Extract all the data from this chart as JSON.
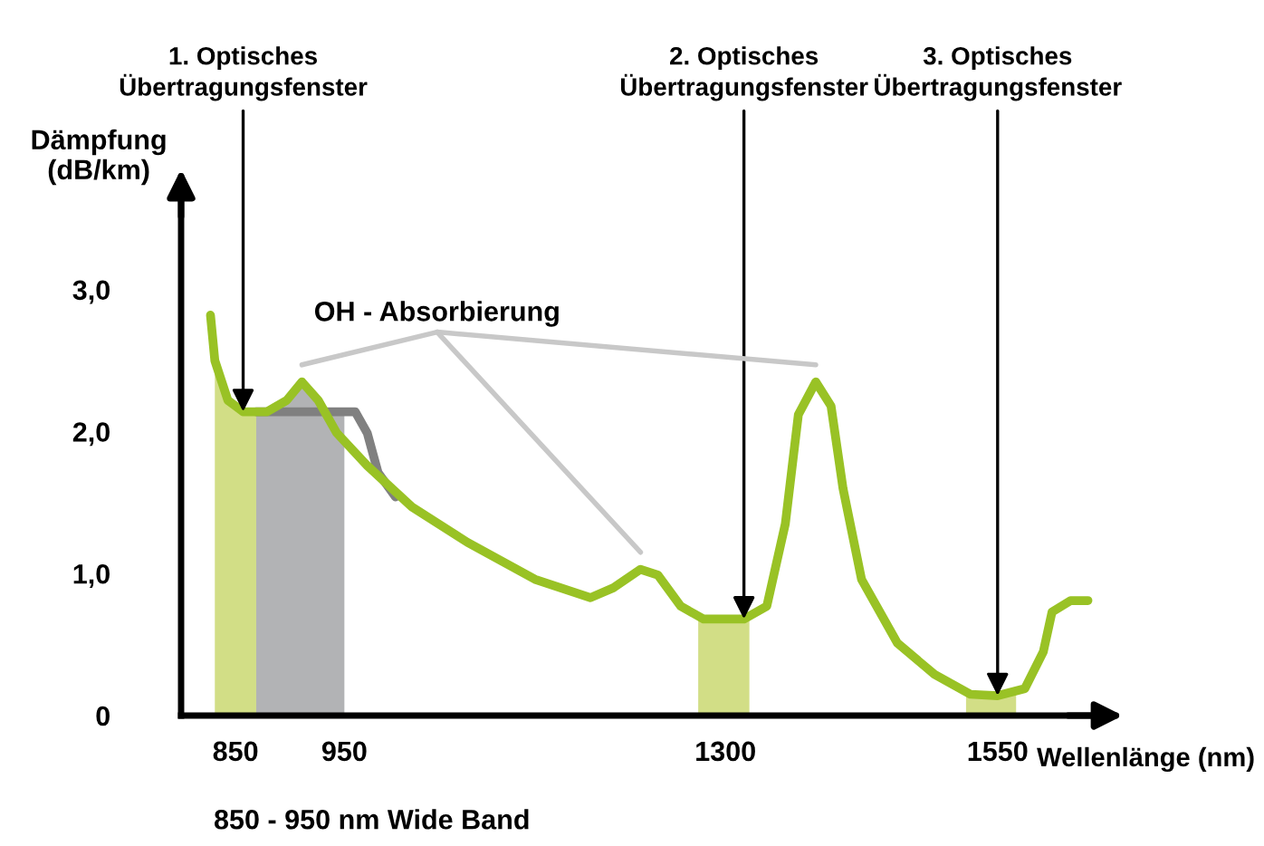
{
  "chart_data": {
    "type": "line",
    "xlabel": "Wellenlänge (nm)",
    "ylabel": "Dämpfung\n(dB/km)",
    "xlim": [
      800,
      1640
    ],
    "ylim": [
      0,
      3.7
    ],
    "xticks": [
      850,
      950,
      1300,
      1550
    ],
    "yticks": [
      0,
      {
        "value": 1,
        "label": "1,0"
      },
      {
        "value": 2,
        "label": "2,0"
      },
      {
        "value": 3,
        "label": "3,0"
      }
    ],
    "grid": false,
    "marker": "none",
    "line_style": "solid",
    "series": [
      {
        "color": "#99c225",
        "x": [
          827,
          831,
          843,
          857,
          879,
          897,
          911,
          926,
          943,
          971,
          1012,
          1063,
          1125,
          1176,
          1197,
          1222,
          1238,
          1259,
          1280,
          1317,
          1338,
          1355,
          1367,
          1383,
          1397,
          1408,
          1425,
          1458,
          1492,
          1525,
          1550,
          1575,
          1592,
          1600,
          1617,
          1633
        ],
        "values": [
          2.82,
          2.5,
          2.22,
          2.14,
          2.14,
          2.22,
          2.35,
          2.22,
          1.99,
          1.76,
          1.47,
          1.22,
          0.96,
          0.83,
          0.9,
          1.03,
          0.99,
          0.77,
          0.68,
          0.68,
          0.77,
          1.35,
          2.12,
          2.35,
          2.18,
          1.6,
          0.96,
          0.51,
          0.29,
          0.15,
          0.14,
          0.19,
          0.45,
          0.73,
          0.81,
          0.81
        ]
      },
      {
        "color": "#808080",
        "x": [
          869,
          960,
          971,
          981,
          997
        ],
        "values": [
          2.14,
          2.14,
          1.99,
          1.71,
          1.54
        ]
      }
    ],
    "bands": [
      {
        "axis": "x",
        "from": 831,
        "to": 869,
        "color": "#d2de86"
      },
      {
        "axis": "x",
        "from": 869,
        "to": 950,
        "color": "#b2b3b5"
      },
      {
        "axis": "x",
        "from": 1275,
        "to": 1322,
        "color": "#d2de86"
      },
      {
        "axis": "x",
        "from": 1521,
        "to": 1567,
        "color": "#d2de86"
      }
    ],
    "annotations": [
      {
        "text": "1. Optisches\nÜbertragungsfenster",
        "x": 857,
        "y": 2.14
      },
      {
        "text": "2. Optisches\nÜbertragungsfenster",
        "x": 1317,
        "y": 0.68
      },
      {
        "text": "3. Optisches\nÜbertragungsfenster",
        "x": 1550,
        "y": 0.14
      },
      "OH - Absorbierung",
      "850 - 950 nm Wide Band"
    ]
  }
}
